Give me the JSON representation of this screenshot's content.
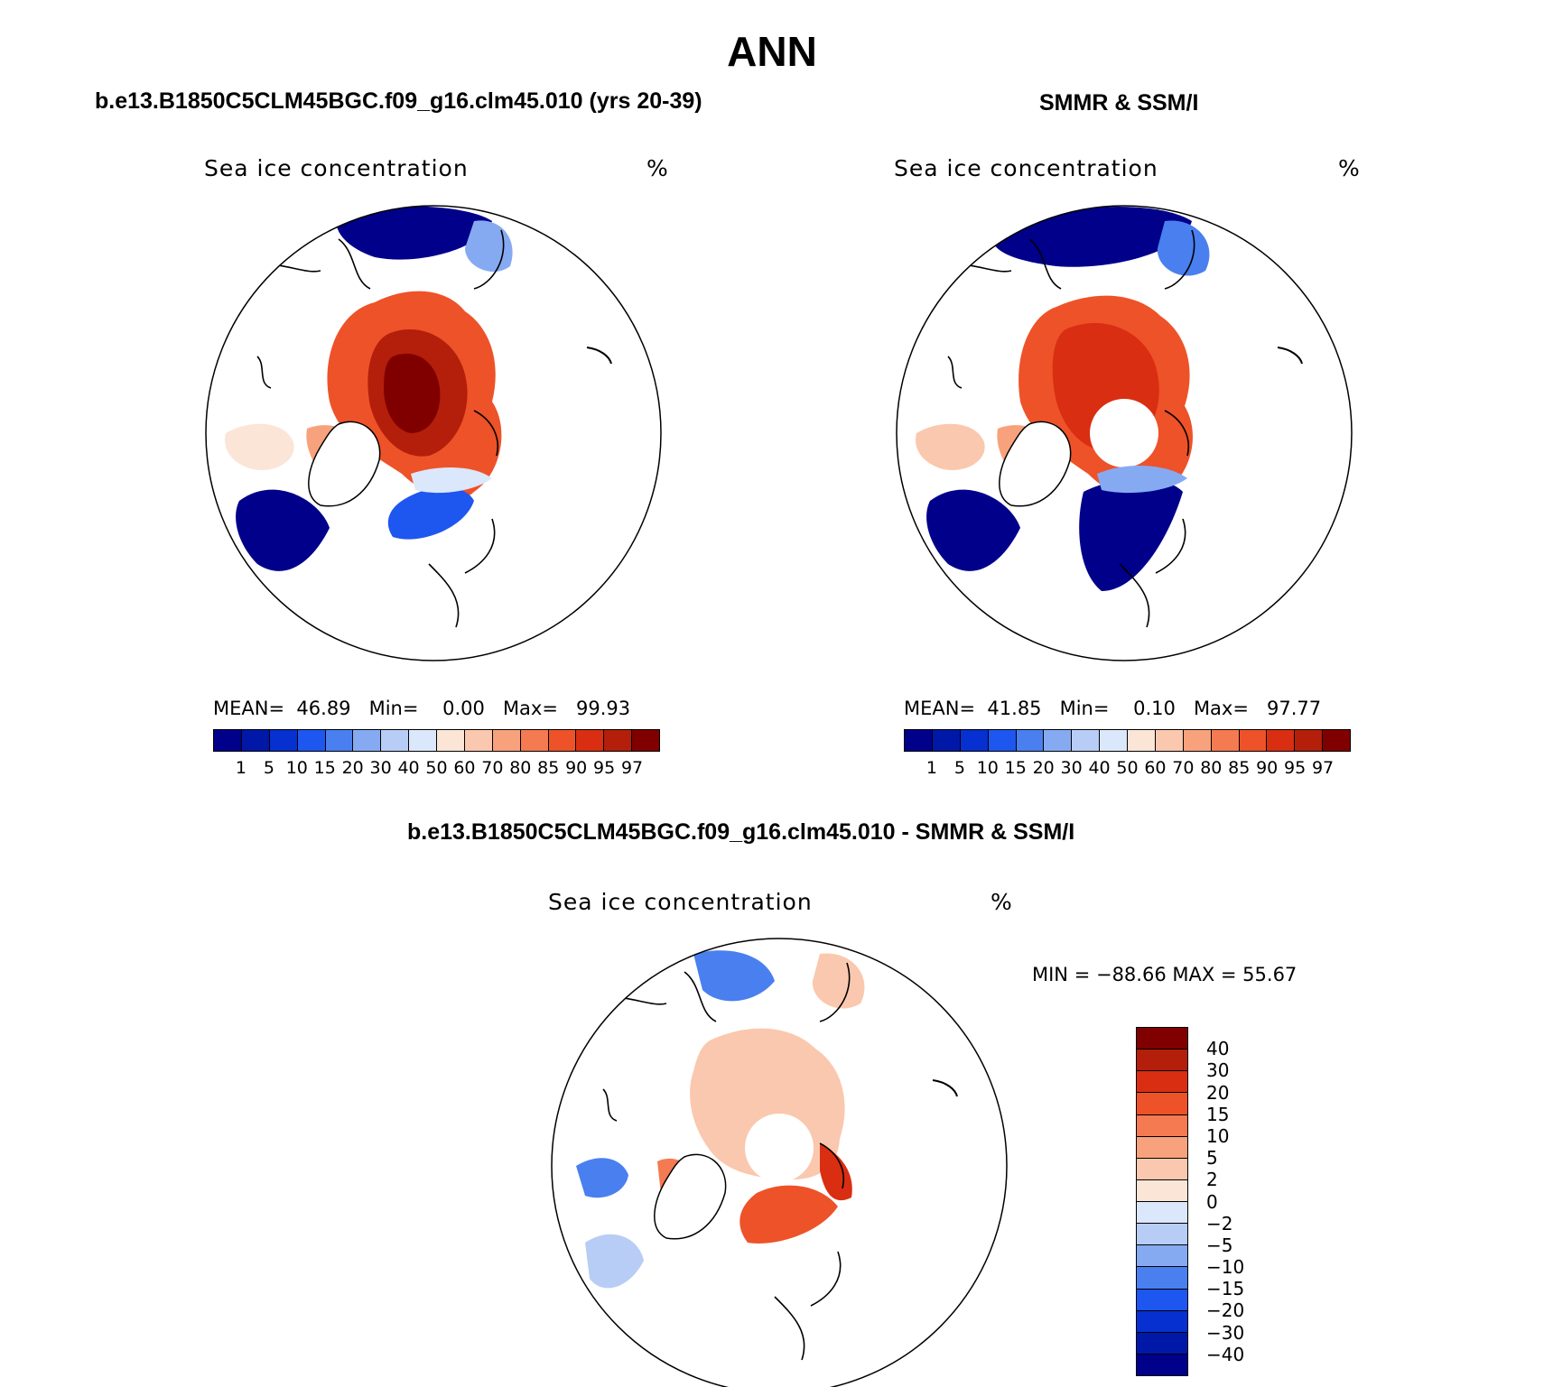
{
  "title": "ANN",
  "panels": [
    {
      "title": "b.e13.B1850C5CLM45BGC.f09_g16.clm45.010 (yrs 20-39)",
      "field_label": "Sea ice concentration",
      "units": "%",
      "stats": {
        "mean_label": "MEAN=",
        "mean": "46.89",
        "min_label": "Min=",
        "min": "0.00",
        "max_label": "Max=",
        "max": "99.93"
      }
    },
    {
      "title": "SMMR & SSM/I",
      "field_label": "Sea ice concentration",
      "units": "%",
      "stats": {
        "mean_label": "MEAN=",
        "mean": "41.85",
        "min_label": "Min=",
        "min": "0.10",
        "max_label": "Max=",
        "max": "97.77"
      }
    },
    {
      "title": "b.e13.B1850C5CLM45BGC.f09_g16.clm45.010 - SMMR & SSM/I",
      "field_label": "Sea ice concentration",
      "units": "%",
      "stats_text": "MIN = −88.66  MAX =   55.67"
    }
  ],
  "colorbar_abs": {
    "levels": [
      "1",
      "5",
      "10",
      "15",
      "20",
      "30",
      "40",
      "50",
      "60",
      "70",
      "80",
      "85",
      "90",
      "95",
      "97"
    ],
    "colors": [
      "#00008b",
      "#0018a8",
      "#0630d0",
      "#1e56f0",
      "#4a7ff0",
      "#86aaf2",
      "#b8cdf6",
      "#dbe7fa",
      "#fbe5d6",
      "#fac8ae",
      "#f7a27c",
      "#f47a52",
      "#ee5228",
      "#d92e12",
      "#b31f0a",
      "#800000"
    ]
  },
  "colorbar_diff": {
    "levels": [
      "40",
      "30",
      "20",
      "15",
      "10",
      "5",
      "2",
      "0",
      "−2",
      "−5",
      "−10",
      "−15",
      "−20",
      "−30",
      "−40"
    ],
    "colors": [
      "#800000",
      "#b31f0a",
      "#d92e12",
      "#ee5228",
      "#f47a52",
      "#f7a27c",
      "#fac8ae",
      "#fbe5d6",
      "#dbe7fa",
      "#b8cdf6",
      "#86aaf2",
      "#4a7ff0",
      "#1e56f0",
      "#0630d0",
      "#0018a8",
      "#00008b"
    ]
  }
}
